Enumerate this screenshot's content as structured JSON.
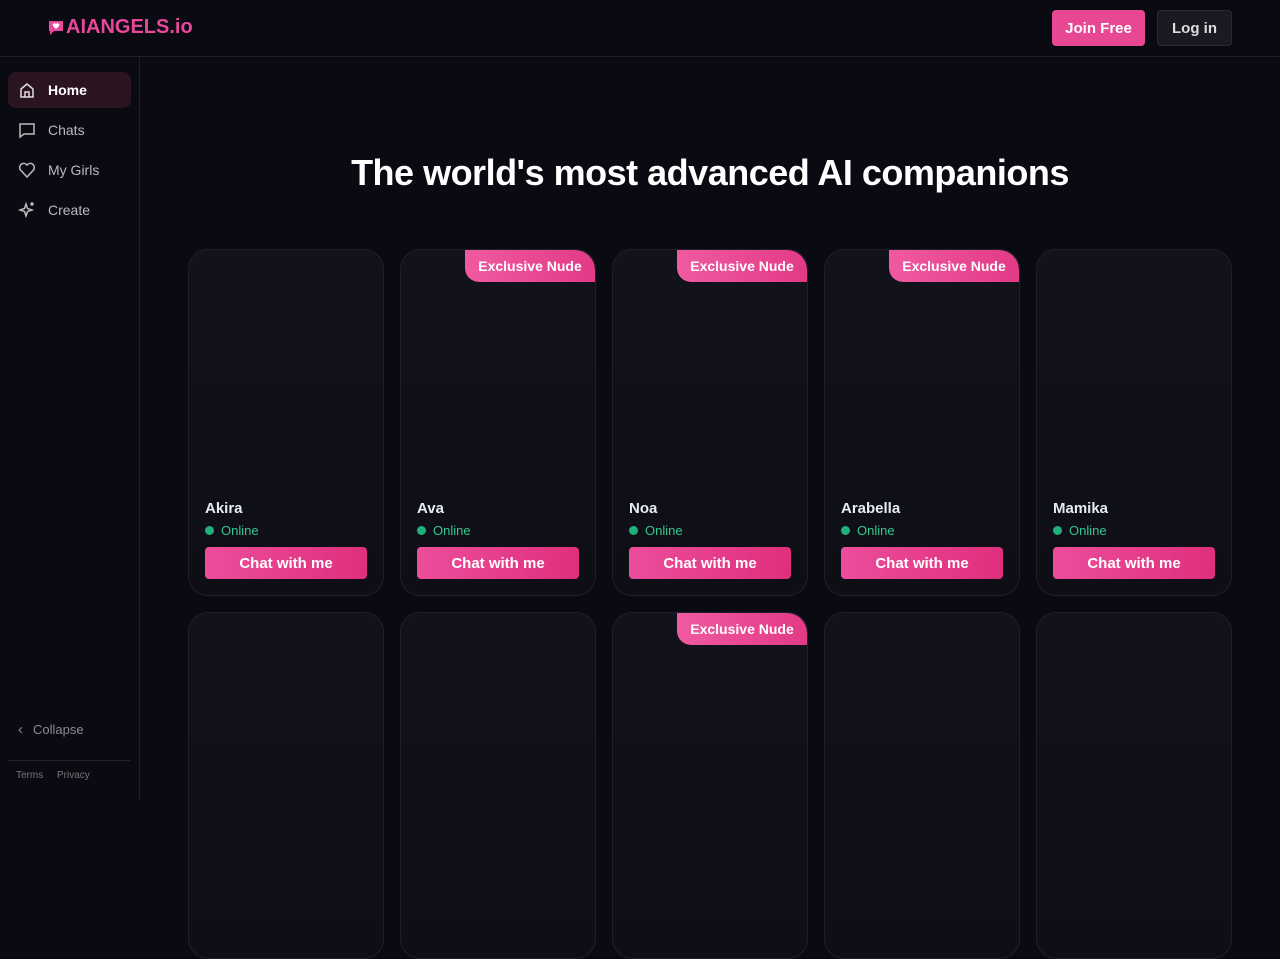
{
  "header": {
    "logo": "AIANGELS.io",
    "join": "Join Free",
    "login": "Log in"
  },
  "sidebar": {
    "nav": [
      "Home",
      "Chats",
      "My Girls",
      "Create"
    ],
    "collapse": "Collapse",
    "footer": [
      "Terms",
      "Privacy"
    ]
  },
  "main": {
    "title": "The world's most advanced AI companions",
    "cards": [
      {
        "name": "Akira",
        "status": "Online",
        "button": "Chat with me"
      },
      {
        "name": "Ava",
        "status": "Online",
        "button": "Chat with me",
        "badge": "Exclusive Nude"
      },
      {
        "name": "Noa",
        "status": "Online",
        "button": "Chat with me",
        "badge": "Exclusive Nude"
      },
      {
        "name": "Arabella",
        "status": "Online",
        "button": "Chat with me",
        "badge": "Exclusive Nude"
      },
      {
        "name": "Mamika",
        "status": "Online",
        "button": "Chat with me"
      },
      {},
      {},
      {
        "badge": "Exclusive Nude"
      },
      {},
      {}
    ]
  }
}
